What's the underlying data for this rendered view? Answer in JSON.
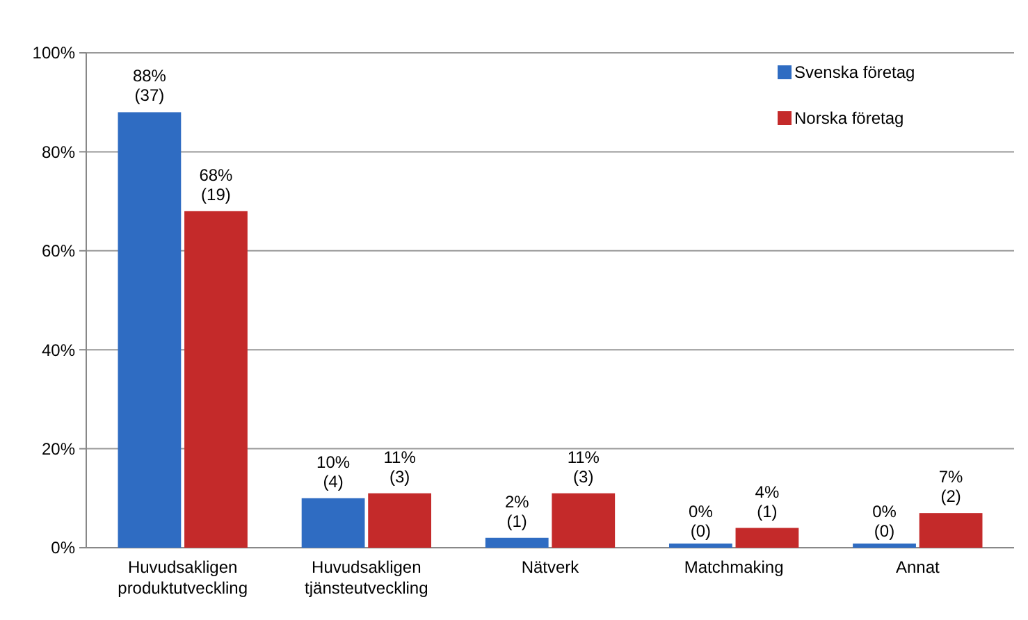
{
  "chart_data": {
    "type": "bar",
    "categories": [
      "Huvudsakligen produktutveckling",
      "Huvudsakligen tjänsteutveckling",
      "Nätverk",
      "Matchmaking",
      "Annat"
    ],
    "series": [
      {
        "name": "Svenska företag",
        "color": "#2f6cc2",
        "values": [
          88,
          10,
          2,
          0,
          0
        ],
        "value_labels": [
          "88%\n(37)",
          "10%\n(4)",
          "2%\n(1)",
          "0%\n(0)",
          "0%\n(0)"
        ]
      },
      {
        "name": "Norska företag",
        "color": "#c42a2a",
        "values": [
          68,
          11,
          11,
          4,
          7
        ],
        "value_labels": [
          "68%\n(19)",
          "11%\n(3)",
          "11%\n(3)",
          "4%\n(1)",
          "7%\n(2)"
        ]
      }
    ],
    "ylim": [
      0,
      100
    ],
    "yticks": [
      {
        "value": 0,
        "label": "0%"
      },
      {
        "value": 20,
        "label": "20%"
      },
      {
        "value": 40,
        "label": "40%"
      },
      {
        "value": 60,
        "label": "60%"
      },
      {
        "value": 80,
        "label": "80%"
      },
      {
        "value": 100,
        "label": "100%"
      }
    ],
    "grid": "y",
    "legend": "top right"
  }
}
